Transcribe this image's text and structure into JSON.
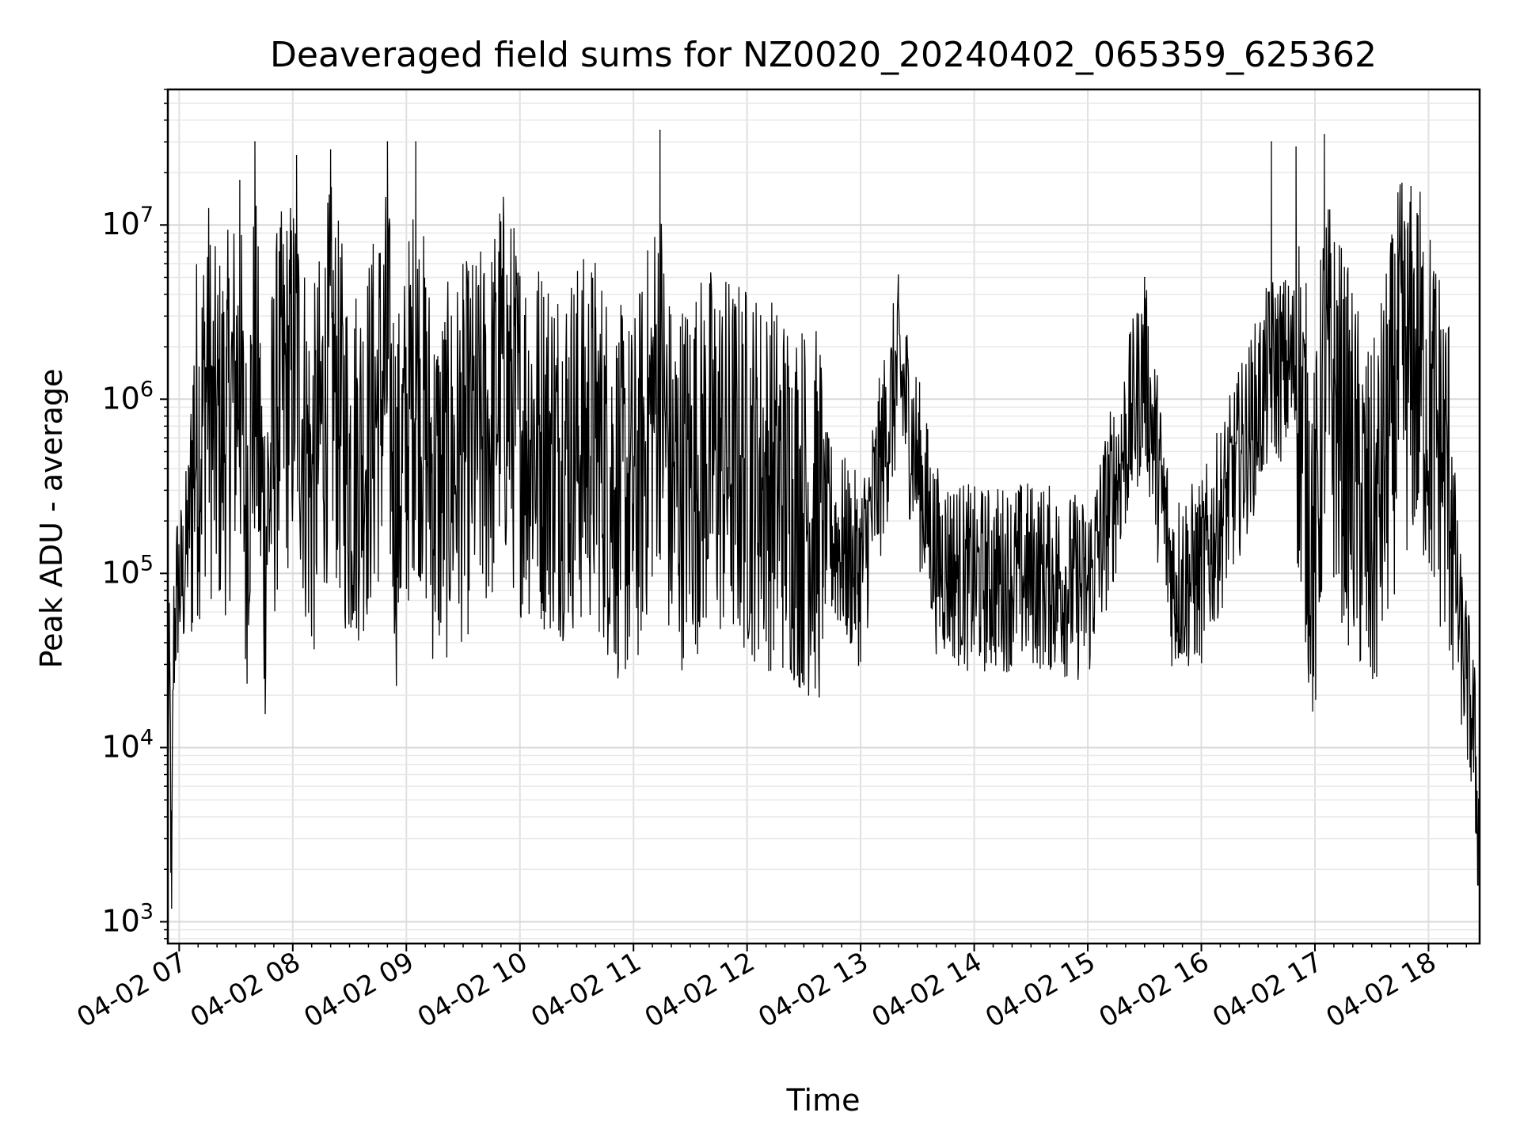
{
  "chart_data": {
    "type": "line",
    "title": "Deaveraged field sums for NZ0020_20240402_065359_625362",
    "xlabel": "Time",
    "ylabel": "Peak ADU - average",
    "y_scale": "log",
    "ylim": [
      750,
      60000000
    ],
    "xlim": [
      "2024-04-02 06:54",
      "2024-04-02 18:27"
    ],
    "grid": true,
    "grid_minor": true,
    "x_ticks": [
      "04-02 07",
      "04-02 08",
      "04-02 09",
      "04-02 10",
      "04-02 11",
      "04-02 12",
      "04-02 13",
      "04-02 14",
      "04-02 15",
      "04-02 16",
      "04-02 17",
      "04-02 18"
    ],
    "y_ticks": [
      {
        "base": "10",
        "exp": "3"
      },
      {
        "base": "10",
        "exp": "4"
      },
      {
        "base": "10",
        "exp": "5"
      },
      {
        "base": "10",
        "exp": "6"
      },
      {
        "base": "10",
        "exp": "7"
      }
    ],
    "series": [
      {
        "color": "#000000",
        "points": [
          [
            "2024-04-02 06:54",
            12000
          ],
          [
            "2024-04-02 06:55",
            25000
          ],
          [
            "2024-04-02 06:56",
            1200
          ],
          [
            "2024-04-02 06:57",
            40000
          ],
          [
            "2024-04-02 06:59",
            85000
          ],
          [
            "2024-04-02 07:02",
            90000
          ],
          [
            "2024-04-02 07:05",
            180000
          ],
          [
            "2024-04-02 07:08",
            600000
          ],
          [
            "2024-04-02 07:12",
            700000
          ],
          [
            "2024-04-02 07:15",
            6500000
          ],
          [
            "2024-04-02 07:18",
            600000
          ],
          [
            "2024-04-02 07:25",
            700000
          ],
          [
            "2024-04-02 07:32",
            18000000
          ],
          [
            "2024-04-02 07:35",
            200000
          ],
          [
            "2024-04-02 07:40",
            30000000
          ],
          [
            "2024-04-02 07:45",
            150000
          ],
          [
            "2024-04-02 07:52",
            900000
          ],
          [
            "2024-04-02 08:02",
            25000000
          ],
          [
            "2024-04-02 08:10",
            300000
          ],
          [
            "2024-04-02 08:20",
            27000000
          ],
          [
            "2024-04-02 08:30",
            400000
          ],
          [
            "2024-04-02 08:40",
            600000
          ],
          [
            "2024-04-02 08:50",
            30000000
          ],
          [
            "2024-04-02 08:55",
            250000
          ],
          [
            "2024-04-02 09:05",
            30000000
          ],
          [
            "2024-04-02 09:15",
            300000
          ],
          [
            "2024-04-02 09:30",
            500000
          ],
          [
            "2024-04-02 09:45",
            700000
          ],
          [
            "2024-04-02 09:50",
            5000000
          ],
          [
            "2024-04-02 10:00",
            700000
          ],
          [
            "2024-04-02 10:20",
            500000
          ],
          [
            "2024-04-02 10:40",
            600000
          ],
          [
            "2024-04-02 10:50",
            300000
          ],
          [
            "2024-04-02 11:00",
            250000
          ],
          [
            "2024-04-02 11:14",
            35000000
          ],
          [
            "2024-04-02 11:20",
            300000
          ],
          [
            "2024-04-02 11:40",
            500000
          ],
          [
            "2024-04-02 12:00",
            400000
          ],
          [
            "2024-04-02 12:20",
            300000
          ],
          [
            "2024-04-02 12:40",
            200000
          ],
          [
            "2024-04-02 13:00",
            100000
          ],
          [
            "2024-04-02 13:20",
            3500000
          ],
          [
            "2024-04-02 13:40",
            120000
          ],
          [
            "2024-04-02 14:00",
            90000
          ],
          [
            "2024-04-02 14:30",
            100000
          ],
          [
            "2024-04-02 15:00",
            80000
          ],
          [
            "2024-04-02 15:30",
            5000000
          ],
          [
            "2024-04-02 15:45",
            90000
          ],
          [
            "2024-04-02 16:00",
            100000
          ],
          [
            "2024-04-02 16:37",
            30000000
          ],
          [
            "2024-04-02 16:50",
            28000000
          ],
          [
            "2024-04-02 17:00",
            120000
          ],
          [
            "2024-04-02 17:05",
            33000000
          ],
          [
            "2024-04-02 17:30",
            150000
          ],
          [
            "2024-04-02 17:45",
            17000000
          ],
          [
            "2024-04-02 17:55",
            1500000
          ],
          [
            "2024-04-02 18:05",
            600000
          ],
          [
            "2024-04-02 18:12",
            300000
          ],
          [
            "2024-04-02 18:16",
            50000
          ],
          [
            "2024-04-02 18:20",
            25000
          ],
          [
            "2024-04-02 18:24",
            12000
          ],
          [
            "2024-04-02 18:27",
            2500
          ]
        ]
      }
    ]
  }
}
